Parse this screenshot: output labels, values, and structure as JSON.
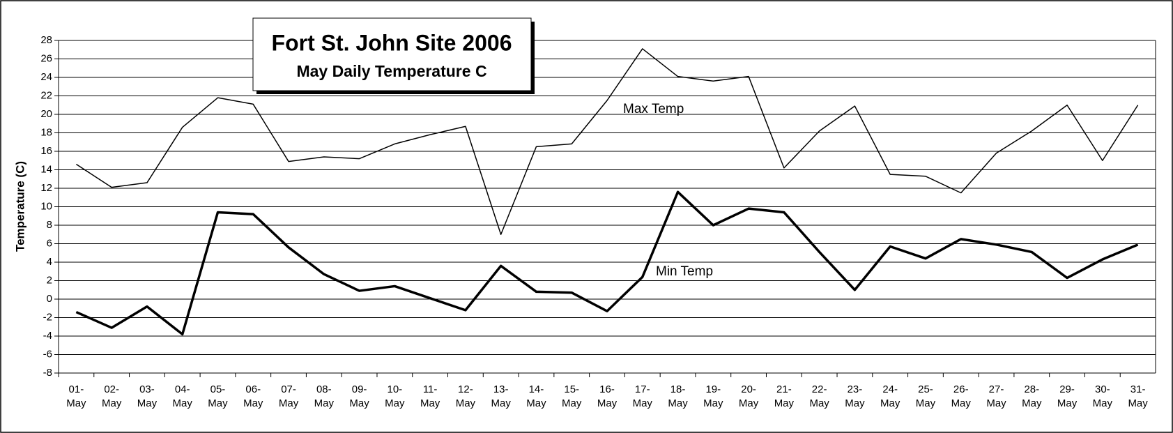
{
  "chart_data": {
    "type": "line",
    "title": "Fort St. John Site 2006",
    "subtitle": "May Daily Temperature C",
    "y_label": "Temperature (C)",
    "categories": [
      "01-May",
      "02-May",
      "03-May",
      "04-May",
      "05-May",
      "06-May",
      "07-May",
      "08-May",
      "09-May",
      "10-May",
      "11-May",
      "12-May",
      "13-May",
      "14-May",
      "15-May",
      "16-May",
      "17-May",
      "18-May",
      "19-May",
      "20-May",
      "21-May",
      "22-May",
      "23-May",
      "24-May",
      "25-May",
      "26-May",
      "27-May",
      "28-May",
      "29-May",
      "30-May",
      "31-May"
    ],
    "series": [
      {
        "name": "Max Temp",
        "color": "#000000",
        "values": [
          14.6,
          12.1,
          12.6,
          18.6,
          21.8,
          21.1,
          14.9,
          15.4,
          15.2,
          16.8,
          17.8,
          18.7,
          7.0,
          16.5,
          16.8,
          21.5,
          27.1,
          24.1,
          23.6,
          24.1,
          14.2,
          18.2,
          20.9,
          13.5,
          13.3,
          11.5,
          15.8,
          18.2,
          21.0,
          15.0,
          21.0
        ]
      },
      {
        "name": "Min Temp",
        "color": "#000000",
        "values": [
          -1.4,
          -3.1,
          -0.8,
          -3.8,
          9.4,
          9.2,
          5.6,
          2.7,
          0.9,
          1.4,
          0.1,
          -1.2,
          3.6,
          0.8,
          0.7,
          -1.3,
          2.4,
          11.6,
          8.0,
          9.8,
          9.4,
          5.1,
          1.0,
          5.7,
          4.4,
          6.5,
          5.9,
          5.1,
          2.3,
          4.3,
          5.9
        ]
      }
    ],
    "ylim": [
      -8,
      28
    ],
    "yticks": [
      -8,
      -6,
      -4,
      -2,
      0,
      2,
      4,
      6,
      8,
      10,
      12,
      14,
      16,
      18,
      20,
      22,
      24,
      26,
      28
    ],
    "grid": true
  }
}
